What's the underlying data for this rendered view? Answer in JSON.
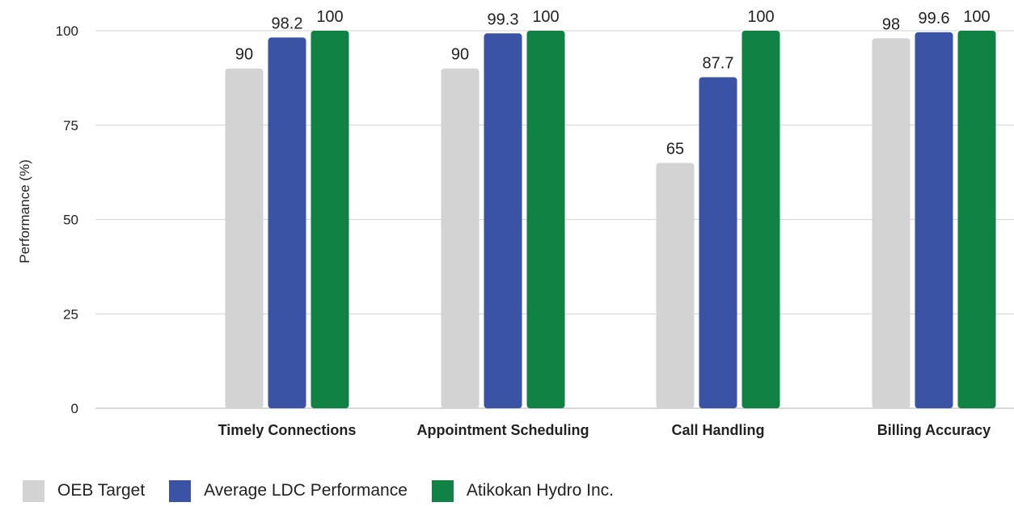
{
  "chart_data": {
    "type": "bar",
    "title": "",
    "xlabel": "",
    "ylabel": "Performance (%)",
    "ylim": [
      0,
      100
    ],
    "yticks": [
      0,
      25,
      50,
      75,
      100
    ],
    "categories": [
      "Timely Connections",
      "Appointment Scheduling",
      "Call Handling",
      "Billing Accuracy"
    ],
    "series": [
      {
        "name": "OEB Target",
        "color": "#d3d3d3",
        "values": [
          90,
          90,
          65,
          98
        ],
        "labels": [
          "90",
          "90",
          "65",
          "98"
        ]
      },
      {
        "name": "Average LDC Performance",
        "color": "#3a53a4",
        "values": [
          98.2,
          99.3,
          87.7,
          99.6
        ],
        "labels": [
          "98.2",
          "99.3",
          "87.7",
          "99.6"
        ]
      },
      {
        "name": "Atikokan Hydro Inc.",
        "color": "#0f8244",
        "values": [
          100,
          100,
          100,
          100
        ],
        "labels": [
          "100",
          "100",
          "100",
          "100"
        ]
      }
    ],
    "grid": true,
    "legend_position": "bottom-left"
  }
}
